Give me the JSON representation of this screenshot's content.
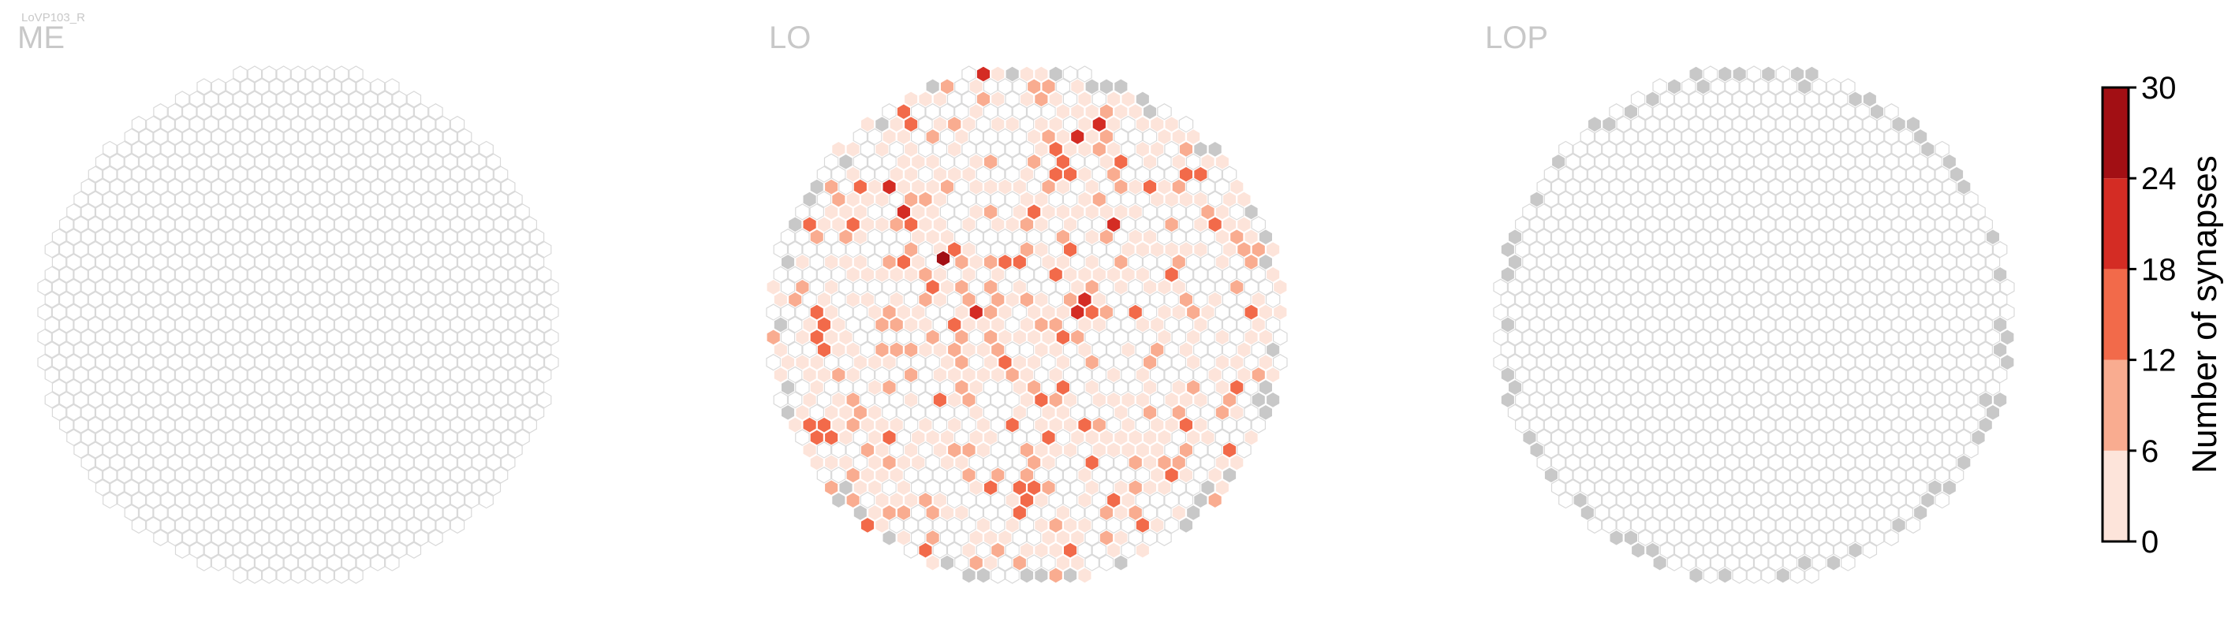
{
  "figure": {
    "cell_type_label": "LoVP103_R"
  },
  "colors": {
    "hex_edge": "#d9d9d9",
    "boundary_fill": "#c8c8c8",
    "colorbar_bins": [
      "#fde4da",
      "#f9ac90",
      "#f26a4a",
      "#d42c24",
      "#a20f14"
    ],
    "axis_color": "#000000"
  },
  "chart_data": [
    {
      "type": "heatmap",
      "panel": "ME",
      "title": "ME",
      "values_shown": "no synapses; all columns empty",
      "boundary_columns": []
    },
    {
      "type": "heatmap",
      "panel": "LO",
      "title": "LO",
      "values_shown": "mostly 0-6 synapses per column, scattered columns 6-18, a few 18-24, one column 24-30",
      "max_bin": "24-30",
      "boundary_columns": "grey columns along the rim (no data)"
    },
    {
      "type": "heatmap",
      "panel": "LOP",
      "title": "LOP",
      "values_shown": "no synapses; all columns empty",
      "boundary_columns": "grey columns along the rim (no data)"
    },
    {
      "type": "colorbar",
      "label": "Number of synapses",
      "ticks": [
        "0",
        "6",
        "12",
        "18",
        "24",
        "30"
      ],
      "range": [
        0,
        30
      ],
      "bins": [
        {
          "from": 0,
          "to": 6,
          "color": "#fde4da"
        },
        {
          "from": 6,
          "to": 12,
          "color": "#f9ac90"
        },
        {
          "from": 12,
          "to": 18,
          "color": "#f26a4a"
        },
        {
          "from": 18,
          "to": 24,
          "color": "#d42c24"
        },
        {
          "from": 24,
          "to": 30,
          "color": "#a20f14"
        }
      ]
    }
  ]
}
